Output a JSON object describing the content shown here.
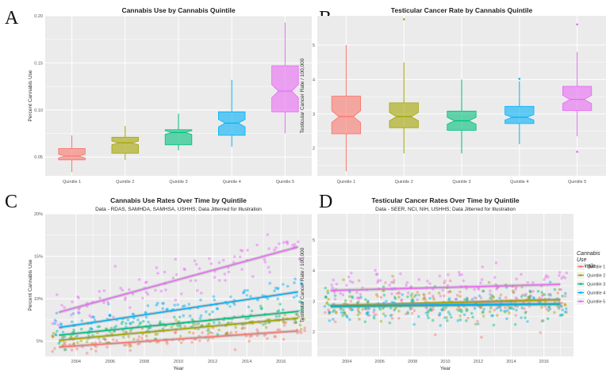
{
  "figure": {
    "panel_labels": [
      "A",
      "B",
      "C",
      "D"
    ]
  },
  "colors": {
    "q1": "#F8766D",
    "q2": "#A3A500",
    "q3": "#00BF7D",
    "q4": "#00B0F6",
    "q5": "#E76BF3",
    "panel_bg": "#EBEBEB",
    "grid": "#FFFFFF"
  },
  "chart_data": [
    {
      "type": "box",
      "panel": "A",
      "title": "Cannabis Use by Cannabis Quintile",
      "xlabel": "",
      "ylabel": "Percent Cannabis Use",
      "ylim": [
        0.03,
        0.2
      ],
      "yticks": [
        0.05,
        0.1,
        0.15,
        0.2
      ],
      "ytick_labels": [
        "0.05",
        "0.10",
        "0.15",
        "0.20"
      ],
      "categories": [
        "Quintile 1",
        "Quintile 2",
        "Quintile 3",
        "Quintile 4",
        "Quintile 5"
      ],
      "boxes": [
        {
          "min": 0.034,
          "q1": 0.047,
          "median": 0.051,
          "q3": 0.059,
          "max": 0.073,
          "notch": [
            0.049,
            0.053
          ],
          "outliers": []
        },
        {
          "min": 0.047,
          "q1": 0.054,
          "median": 0.065,
          "q3": 0.071,
          "max": 0.083,
          "notch": [
            0.063,
            0.067
          ],
          "outliers": []
        },
        {
          "min": 0.057,
          "q1": 0.063,
          "median": 0.076,
          "q3": 0.079,
          "max": 0.096,
          "notch": [
            0.074,
            0.078
          ],
          "outliers": []
        },
        {
          "min": 0.061,
          "q1": 0.073,
          "median": 0.086,
          "q3": 0.098,
          "max": 0.132,
          "notch": [
            0.082,
            0.09
          ],
          "outliers": []
        },
        {
          "min": 0.075,
          "q1": 0.098,
          "median": 0.12,
          "q3": 0.147,
          "max": 0.193,
          "notch": [
            0.113,
            0.127
          ],
          "outliers": []
        }
      ]
    },
    {
      "type": "box",
      "panel": "B",
      "title": "Testicular Cancer Rate by Cannabis Quintile",
      "xlabel": "",
      "ylabel": "Testicular Cancer Rate / 100,000",
      "ylim": [
        1.2,
        5.85
      ],
      "yticks": [
        2,
        3,
        4,
        5
      ],
      "ytick_labels": [
        "2",
        "3",
        "4",
        "5"
      ],
      "categories": [
        "Quintile 1",
        "Quintile 2",
        "Quintile 3",
        "Quintile 4",
        "Quintile 5"
      ],
      "boxes": [
        {
          "min": 1.33,
          "q1": 2.42,
          "median": 2.92,
          "q3": 3.52,
          "max": 5.0,
          "notch": [
            2.75,
            3.09
          ],
          "outliers": []
        },
        {
          "min": 1.85,
          "q1": 2.6,
          "median": 2.92,
          "q3": 3.32,
          "max": 4.5,
          "notch": [
            2.8,
            3.04
          ],
          "outliers": [
            5.75
          ]
        },
        {
          "min": 1.85,
          "q1": 2.52,
          "median": 2.8,
          "q3": 3.08,
          "max": 4.0,
          "notch": [
            2.7,
            2.9
          ],
          "outliers": []
        },
        {
          "min": 2.12,
          "q1": 2.72,
          "median": 2.9,
          "q3": 3.22,
          "max": 3.95,
          "notch": [
            2.82,
            2.98
          ],
          "outliers": [
            4.02
          ]
        },
        {
          "min": 2.35,
          "q1": 3.1,
          "median": 3.42,
          "q3": 3.8,
          "max": 4.8,
          "notch": [
            3.3,
            3.54
          ],
          "outliers": [
            1.9,
            5.6
          ]
        }
      ]
    },
    {
      "type": "scatter",
      "panel": "C",
      "title": "Cannabis Use Rates Over Time by Quintile",
      "subtitle": "Data - RDAS, SAMHDA, SAMHSA, USHHS; Data Jitterred for Illustration",
      "xlabel": "Year",
      "ylabel": "Percent Cannabis Use",
      "xlim": [
        2002.2,
        2017.8
      ],
      "ylim": [
        0.032,
        0.2
      ],
      "xticks": [
        2004,
        2006,
        2008,
        2010,
        2012,
        2014,
        2016
      ],
      "xtick_labels": [
        "2004",
        "2006",
        "2008",
        "2010",
        "2012",
        "2014",
        "2016"
      ],
      "yticks": [
        0.05,
        0.1,
        0.15,
        0.2
      ],
      "ytick_labels": [
        "5%",
        "10%",
        "15%",
        "20%"
      ],
      "series": [
        {
          "name": "Quintile 1",
          "trend": {
            "x": [
              2003,
              2017
            ],
            "y": [
              0.043,
              0.062
            ]
          },
          "center": [
            0.043,
            0.062
          ],
          "spread": 0.009
        },
        {
          "name": "Quintile 2",
          "trend": {
            "x": [
              2003,
              2017
            ],
            "y": [
              0.051,
              0.077
            ]
          },
          "center": [
            0.051,
            0.077
          ],
          "spread": 0.009
        },
        {
          "name": "Quintile 3",
          "trend": {
            "x": [
              2003,
              2017
            ],
            "y": [
              0.057,
              0.085
            ]
          },
          "center": [
            0.057,
            0.085
          ],
          "spread": 0.01
        },
        {
          "name": "Quintile 4",
          "trend": {
            "x": [
              2003,
              2017
            ],
            "y": [
              0.066,
              0.108
            ]
          },
          "center": [
            0.066,
            0.108
          ],
          "spread": 0.013
        },
        {
          "name": "Quintile 5",
          "trend": {
            "x": [
              2003,
              2017
            ],
            "y": [
              0.084,
              0.161
            ]
          },
          "center": [
            0.084,
            0.161
          ],
          "spread": 0.022
        }
      ]
    },
    {
      "type": "scatter",
      "panel": "D",
      "title": "Testicular Cancer Rates Over Time by Quintile",
      "subtitle": "Data - SEER, NCI, NIH, USHHS; Data Jitterred for Illustration",
      "xlabel": "Year",
      "ylabel": "Testicular Cancer Rate / 100,000",
      "xlim": [
        2002.2,
        2017.8
      ],
      "ylim": [
        1.2,
        5.85
      ],
      "xticks": [
        2004,
        2006,
        2008,
        2010,
        2012,
        2014,
        2016
      ],
      "xtick_labels": [
        "2004",
        "2006",
        "2008",
        "2010",
        "2012",
        "2014",
        "2016"
      ],
      "yticks": [
        2,
        3,
        4,
        5
      ],
      "ytick_labels": [
        "2",
        "3",
        "4",
        "5"
      ],
      "legend": {
        "title_lines": [
          "Cannabis",
          "Use",
          "Quintile"
        ],
        "placement": "right",
        "entries": [
          "Quintile 1",
          "Quintile 2",
          "Quintile 3",
          "Quintile 4",
          "Quintile 5"
        ]
      },
      "series": [
        {
          "name": "Quintile 1",
          "trend": {
            "x": [
              2003,
              2017
            ],
            "y": [
              2.83,
              3.05
            ]
          },
          "center": [
            2.83,
            3.05
          ],
          "spread": 0.6
        },
        {
          "name": "Quintile 2",
          "trend": {
            "x": [
              2003,
              2017
            ],
            "y": [
              2.86,
              3.05
            ]
          },
          "center": [
            2.86,
            3.05
          ],
          "spread": 0.6
        },
        {
          "name": "Quintile 3",
          "trend": {
            "x": [
              2003,
              2017
            ],
            "y": [
              2.82,
              2.9
            ]
          },
          "center": [
            2.82,
            2.9
          ],
          "spread": 0.55
        },
        {
          "name": "Quintile 4",
          "trend": {
            "x": [
              2003,
              2017
            ],
            "y": [
              2.85,
              2.92
            ]
          },
          "center": [
            2.85,
            2.92
          ],
          "spread": 0.55
        },
        {
          "name": "Quintile 5",
          "trend": {
            "x": [
              2003,
              2017
            ],
            "y": [
              3.35,
              3.55
            ]
          },
          "center": [
            3.35,
            3.55
          ],
          "spread": 0.6
        }
      ]
    }
  ]
}
